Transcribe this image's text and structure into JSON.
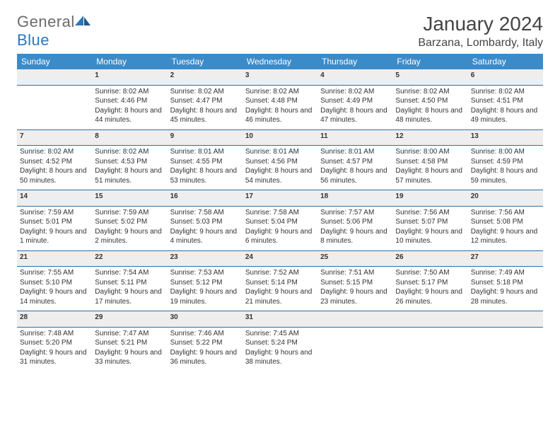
{
  "logo": {
    "text_general": "General",
    "text_blue": "Blue"
  },
  "title": "January 2024",
  "location": "Barzana, Lombardy, Italy",
  "colors": {
    "header_bg": "#3b8bc9",
    "header_text": "#ffffff",
    "daynum_bg": "#eeeeee",
    "rule": "#2f6fa3",
    "body_bg": "#ffffff",
    "text": "#333333",
    "logo_gray": "#6b6b6b",
    "logo_blue": "#2d77b6"
  },
  "typography": {
    "title_size_pt": 21,
    "location_size_pt": 12,
    "dayheader_size_pt": 9,
    "daynum_size_pt": 9,
    "detail_size_pt": 7.5
  },
  "weekdays": [
    "Sunday",
    "Monday",
    "Tuesday",
    "Wednesday",
    "Thursday",
    "Friday",
    "Saturday"
  ],
  "weeks": [
    {
      "nums": [
        "",
        "1",
        "2",
        "3",
        "4",
        "5",
        "6"
      ],
      "cells": [
        null,
        {
          "sunrise": "8:02 AM",
          "sunset": "4:46 PM",
          "daylight": "8 hours and 44 minutes."
        },
        {
          "sunrise": "8:02 AM",
          "sunset": "4:47 PM",
          "daylight": "8 hours and 45 minutes."
        },
        {
          "sunrise": "8:02 AM",
          "sunset": "4:48 PM",
          "daylight": "8 hours and 46 minutes."
        },
        {
          "sunrise": "8:02 AM",
          "sunset": "4:49 PM",
          "daylight": "8 hours and 47 minutes."
        },
        {
          "sunrise": "8:02 AM",
          "sunset": "4:50 PM",
          "daylight": "8 hours and 48 minutes."
        },
        {
          "sunrise": "8:02 AM",
          "sunset": "4:51 PM",
          "daylight": "8 hours and 49 minutes."
        }
      ]
    },
    {
      "nums": [
        "7",
        "8",
        "9",
        "10",
        "11",
        "12",
        "13"
      ],
      "cells": [
        {
          "sunrise": "8:02 AM",
          "sunset": "4:52 PM",
          "daylight": "8 hours and 50 minutes."
        },
        {
          "sunrise": "8:02 AM",
          "sunset": "4:53 PM",
          "daylight": "8 hours and 51 minutes."
        },
        {
          "sunrise": "8:01 AM",
          "sunset": "4:55 PM",
          "daylight": "8 hours and 53 minutes."
        },
        {
          "sunrise": "8:01 AM",
          "sunset": "4:56 PM",
          "daylight": "8 hours and 54 minutes."
        },
        {
          "sunrise": "8:01 AM",
          "sunset": "4:57 PM",
          "daylight": "8 hours and 56 minutes."
        },
        {
          "sunrise": "8:00 AM",
          "sunset": "4:58 PM",
          "daylight": "8 hours and 57 minutes."
        },
        {
          "sunrise": "8:00 AM",
          "sunset": "4:59 PM",
          "daylight": "8 hours and 59 minutes."
        }
      ]
    },
    {
      "nums": [
        "14",
        "15",
        "16",
        "17",
        "18",
        "19",
        "20"
      ],
      "cells": [
        {
          "sunrise": "7:59 AM",
          "sunset": "5:01 PM",
          "daylight": "9 hours and 1 minute."
        },
        {
          "sunrise": "7:59 AM",
          "sunset": "5:02 PM",
          "daylight": "9 hours and 2 minutes."
        },
        {
          "sunrise": "7:58 AM",
          "sunset": "5:03 PM",
          "daylight": "9 hours and 4 minutes."
        },
        {
          "sunrise": "7:58 AM",
          "sunset": "5:04 PM",
          "daylight": "9 hours and 6 minutes."
        },
        {
          "sunrise": "7:57 AM",
          "sunset": "5:06 PM",
          "daylight": "9 hours and 8 minutes."
        },
        {
          "sunrise": "7:56 AM",
          "sunset": "5:07 PM",
          "daylight": "9 hours and 10 minutes."
        },
        {
          "sunrise": "7:56 AM",
          "sunset": "5:08 PM",
          "daylight": "9 hours and 12 minutes."
        }
      ]
    },
    {
      "nums": [
        "21",
        "22",
        "23",
        "24",
        "25",
        "26",
        "27"
      ],
      "cells": [
        {
          "sunrise": "7:55 AM",
          "sunset": "5:10 PM",
          "daylight": "9 hours and 14 minutes."
        },
        {
          "sunrise": "7:54 AM",
          "sunset": "5:11 PM",
          "daylight": "9 hours and 17 minutes."
        },
        {
          "sunrise": "7:53 AM",
          "sunset": "5:12 PM",
          "daylight": "9 hours and 19 minutes."
        },
        {
          "sunrise": "7:52 AM",
          "sunset": "5:14 PM",
          "daylight": "9 hours and 21 minutes."
        },
        {
          "sunrise": "7:51 AM",
          "sunset": "5:15 PM",
          "daylight": "9 hours and 23 minutes."
        },
        {
          "sunrise": "7:50 AM",
          "sunset": "5:17 PM",
          "daylight": "9 hours and 26 minutes."
        },
        {
          "sunrise": "7:49 AM",
          "sunset": "5:18 PM",
          "daylight": "9 hours and 28 minutes."
        }
      ]
    },
    {
      "nums": [
        "28",
        "29",
        "30",
        "31",
        "",
        "",
        ""
      ],
      "cells": [
        {
          "sunrise": "7:48 AM",
          "sunset": "5:20 PM",
          "daylight": "9 hours and 31 minutes."
        },
        {
          "sunrise": "7:47 AM",
          "sunset": "5:21 PM",
          "daylight": "9 hours and 33 minutes."
        },
        {
          "sunrise": "7:46 AM",
          "sunset": "5:22 PM",
          "daylight": "9 hours and 36 minutes."
        },
        {
          "sunrise": "7:45 AM",
          "sunset": "5:24 PM",
          "daylight": "9 hours and 38 minutes."
        },
        null,
        null,
        null
      ]
    }
  ],
  "labels": {
    "sunrise": "Sunrise:",
    "sunset": "Sunset:",
    "daylight": "Daylight:"
  }
}
